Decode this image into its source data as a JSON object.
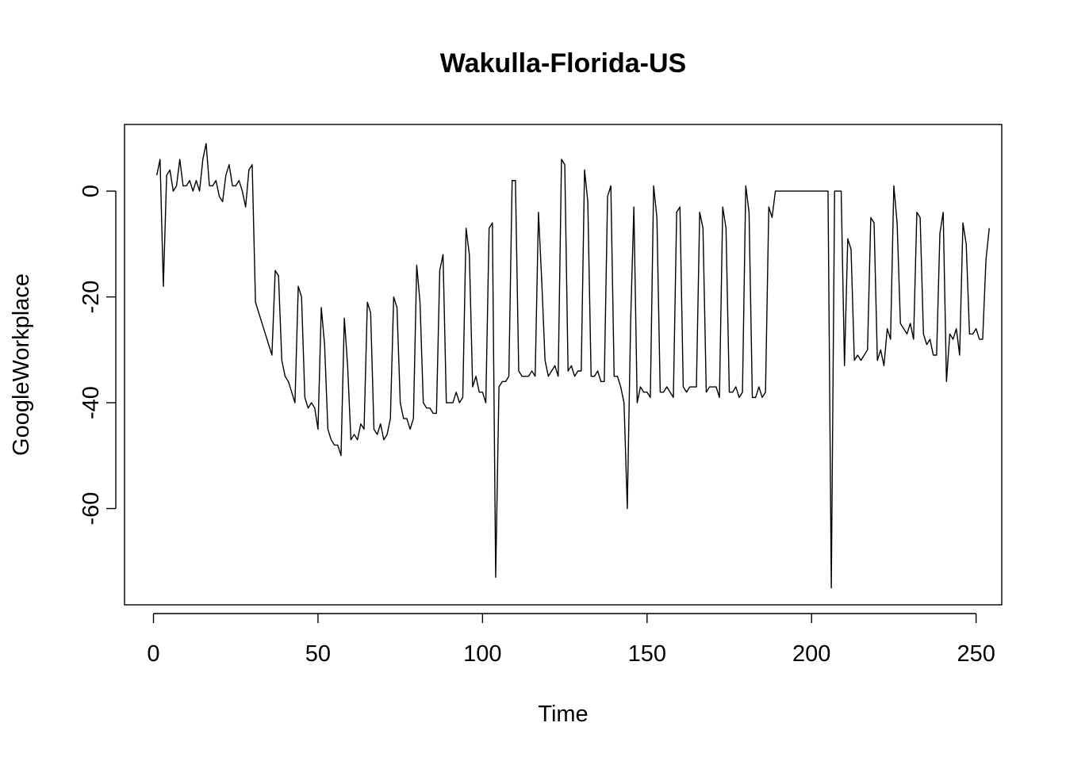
{
  "chart_data": {
    "type": "line",
    "title": "Wakulla-Florida-US",
    "xlabel": "Time",
    "ylabel": "GoogleWorkplace",
    "xlim": [
      -8.8,
      257.8
    ],
    "ylim": [
      -78.2,
      12.6
    ],
    "x_ticks": [
      0,
      50,
      100,
      150,
      200,
      250
    ],
    "y_ticks": [
      0,
      -20,
      -40,
      -60
    ],
    "x_tick_labels": [
      "0",
      "50",
      "100",
      "150",
      "200",
      "250"
    ],
    "y_tick_labels": [
      "0",
      "-20",
      "-40",
      "-60"
    ],
    "grid": false,
    "x_start": 1,
    "series": [
      {
        "values": [
          3,
          6,
          -18,
          3,
          4,
          0,
          1,
          6,
          1,
          1,
          2,
          0,
          2,
          0,
          6,
          9,
          1,
          1,
          2,
          -1,
          -2,
          3,
          5,
          1,
          1,
          2,
          0,
          -3,
          4,
          5,
          -21,
          -23,
          -25,
          -27,
          -29,
          -31,
          -15,
          -16,
          -32,
          -35,
          -36,
          -38,
          -40,
          -18,
          -20,
          -39,
          -41,
          -40,
          -41,
          -45,
          -22,
          -29,
          -45,
          -47,
          -48,
          -48,
          -50,
          -24,
          -33,
          -47,
          -46,
          -47,
          -44,
          -45,
          -21,
          -23,
          -45,
          -46,
          -44,
          -47,
          -46,
          -43,
          -20,
          -22,
          -40,
          -43,
          -43,
          -45,
          -43,
          -14,
          -21,
          -40,
          -41,
          -41,
          -42,
          -42,
          -15,
          -12,
          -40,
          -40,
          -40,
          -38,
          -40,
          -39,
          -7,
          -12,
          -37,
          -35,
          -38,
          -38,
          -40,
          -7,
          -6,
          -73,
          -37,
          -36,
          -36,
          -35,
          2,
          2,
          -34,
          -35,
          -35,
          -35,
          -34,
          -35,
          -4,
          -17,
          -32,
          -35,
          -34,
          -33,
          -35,
          6,
          5,
          -34,
          -33,
          -35,
          -34,
          -34,
          4,
          -2,
          -35,
          -35,
          -34,
          -36,
          -36,
          -1,
          1,
          -35,
          -35,
          -37,
          -40,
          -60,
          -25,
          -3,
          -40,
          -37,
          -38,
          -38,
          -39,
          1,
          -5,
          -38,
          -38,
          -37,
          -38,
          -39,
          -4,
          -3,
          -37,
          -38,
          -37,
          -37,
          -37,
          -4,
          -7,
          -38,
          -37,
          -37,
          -37,
          -39,
          -3,
          -7,
          -38,
          -38,
          -37,
          -39,
          -38,
          1,
          -4,
          -39,
          -39,
          -37,
          -39,
          -38,
          -3,
          -5,
          0,
          0,
          0,
          0,
          0,
          0,
          0,
          0,
          0,
          0,
          0,
          0,
          0,
          0,
          0,
          0,
          0,
          -75,
          0,
          0,
          0,
          -33,
          -9,
          -11,
          -32,
          -31,
          -32,
          -31,
          -30,
          -5,
          -6,
          -32,
          -30,
          -33,
          -26,
          -28,
          1,
          -6,
          -25,
          -26,
          -27,
          -25,
          -28,
          -4,
          -5,
          -27,
          -29,
          -28,
          -31,
          -31,
          -8,
          -4,
          -36,
          -27,
          -28,
          -26,
          -31,
          -6,
          -10,
          -27,
          -27,
          -26,
          -28,
          -28,
          -13,
          -7
        ]
      }
    ]
  }
}
